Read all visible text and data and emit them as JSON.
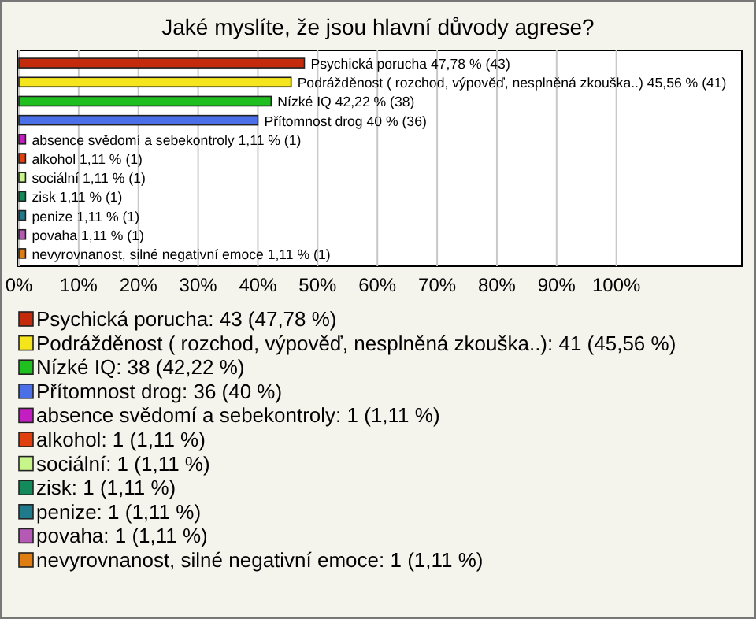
{
  "chart_data": {
    "type": "bar",
    "orientation": "horizontal",
    "title": "Jaké myslíte, že jsou hlavní důvody agrese?",
    "categories": [
      "Psychická porucha",
      "Podrážděnost ( rozchod, výpověď, nesplněná zkouška..)",
      "Nízké IQ",
      "Přítomnost drog",
      "absence svědomí a sebekontroly",
      "alkohol",
      "sociální",
      "zisk",
      "penize",
      "povaha",
      "nevyrovnanost, silné negativní emoce"
    ],
    "values": [
      47.78,
      45.56,
      42.22,
      40,
      1.11,
      1.11,
      1.11,
      1.11,
      1.11,
      1.11,
      1.11
    ],
    "value_labels": [
      "47,78 % (43)",
      "45,56 % (41)",
      "42,22 % (38)",
      "40 % (36)",
      "1,11 % (1)",
      "1,11 % (1)",
      "1,11 % (1)",
      "1,11 % (1)",
      "1,11 % (1)",
      "1,11 % (1)",
      "1,11 % (1)"
    ],
    "colors": [
      "#c42a0c",
      "#f5e51c",
      "#1fbf1f",
      "#4a6fe6",
      "#c21ec2",
      "#e0400e",
      "#c8f58a",
      "#138a5a",
      "#1f7a8c",
      "#b45ab4",
      "#e07d10"
    ],
    "xlim": [
      0,
      121
    ],
    "xticks": [
      {
        "value": 0,
        "label": "0%"
      },
      {
        "value": 10,
        "label": "10%"
      },
      {
        "value": 20,
        "label": "20%"
      },
      {
        "value": 30,
        "label": "30%"
      },
      {
        "value": 40,
        "label": "40%"
      },
      {
        "value": 50,
        "label": "50%"
      },
      {
        "value": 60,
        "label": "60%"
      },
      {
        "value": 70,
        "label": "70%"
      },
      {
        "value": 80,
        "label": "80%"
      },
      {
        "value": 90,
        "label": "90%"
      },
      {
        "value": 100,
        "label": "100%"
      }
    ],
    "grid": "x",
    "annotations": [
      "Psychická porucha: 43 (47,78 %)",
      "Podrážděnost ( rozchod, výpověď, nesplněná zkouška..): 41 (45,56 %)",
      "Nízké IQ: 38 (42,22 %)",
      "Přítomnost drog: 36 (40 %)",
      "absence svědomí a sebekontroly: 1 (1,11 %)",
      "alkohol: 1 (1,11 %)",
      "sociální: 1 (1,11 %)",
      "zisk: 1 (1,11 %)",
      "penize: 1 (1,11 %)",
      "povaha: 1 (1,11 %)",
      "nevyrovnanost, silné negativní emoce: 1 (1,11 %)"
    ]
  }
}
